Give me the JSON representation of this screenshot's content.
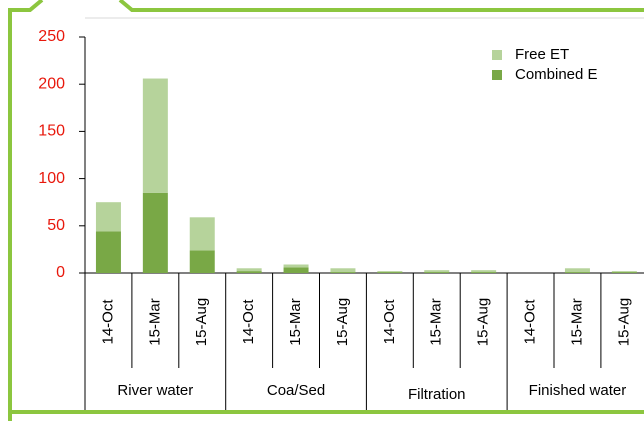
{
  "chart_data": {
    "type": "stacked_bar",
    "categories": [
      "14-Oct",
      "15-Mar",
      "15-Aug",
      "14-Oct",
      "15-Mar",
      "15-Aug",
      "14-Oct",
      "15-Mar",
      "15-Aug",
      "14-Oct",
      "15-Mar",
      "15-Aug"
    ],
    "groups": [
      "River water",
      "Coa/Sed",
      "Filtration",
      "Finished water"
    ],
    "series": [
      {
        "name": "Combined E",
        "color": "#79a846",
        "values": [
          44,
          85,
          24,
          2,
          6,
          1,
          1,
          1,
          1,
          0,
          1,
          1
        ]
      },
      {
        "name": "Free ET",
        "color": "#b6d39b",
        "values": [
          31,
          121,
          35,
          3,
          3,
          4,
          1,
          2,
          2,
          0,
          4,
          1
        ]
      }
    ],
    "ylim": [
      0,
      250
    ],
    "yticks": [
      0,
      50,
      100,
      150,
      200,
      250
    ],
    "grid": false,
    "legend": "top-right"
  }
}
